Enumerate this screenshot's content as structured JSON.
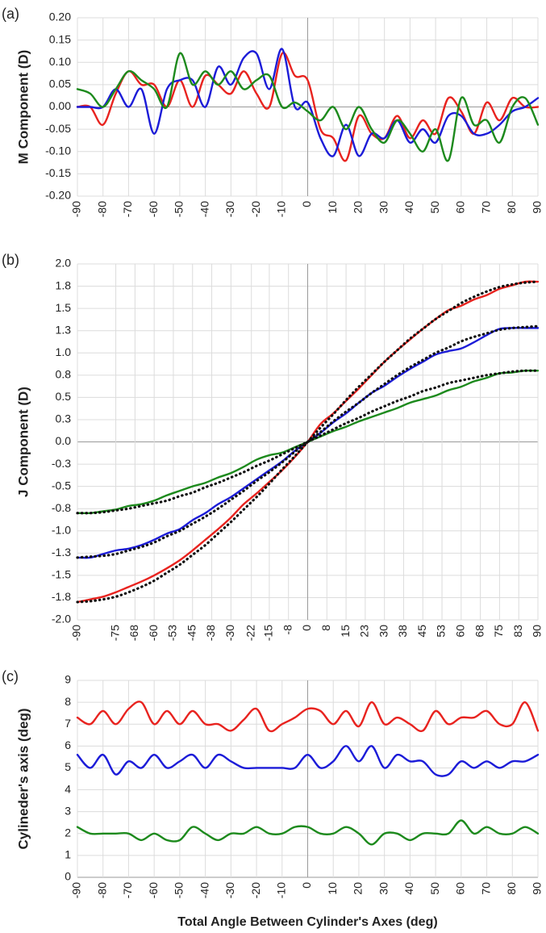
{
  "chart_data": [
    {
      "type": "line",
      "label": "(a)",
      "ylabel": "M Component (D)",
      "x": [
        -90,
        -85,
        -80,
        -75,
        -70,
        -65,
        -60,
        -55,
        -50,
        -45,
        -40,
        -35,
        -30,
        -25,
        -20,
        -15,
        -10,
        -5,
        0,
        5,
        10,
        15,
        20,
        25,
        30,
        35,
        40,
        45,
        50,
        55,
        60,
        65,
        70,
        75,
        80,
        85,
        90
      ],
      "xlim": [
        -90,
        90
      ],
      "xticks": [
        -90,
        -80,
        -70,
        -60,
        -50,
        -40,
        -30,
        -20,
        -10,
        0,
        10,
        20,
        30,
        40,
        50,
        60,
        70,
        80,
        90
      ],
      "ylim": [
        -0.2,
        0.2
      ],
      "yticks": [
        {
          "value": 0.2,
          "label": "0.20"
        },
        0.15,
        {
          "value": 0.1,
          "label": "0.10"
        },
        0.05,
        {
          "value": 0,
          "label": "0.00"
        },
        -0.05,
        {
          "value": -0.1,
          "label": "-0.10"
        },
        -0.15,
        {
          "value": -0.2,
          "label": "-0.20"
        }
      ],
      "grid": true,
      "series": [
        {
          "color": "#e8231f",
          "values": [
            0,
            0,
            -0.04,
            0.03,
            0.08,
            0.05,
            0.05,
            0,
            0.06,
            0,
            0.07,
            0.05,
            0.03,
            0.08,
            0.03,
            0,
            0.12,
            0.07,
            0.06,
            -0.05,
            -0.07,
            -0.12,
            -0.02,
            -0.06,
            -0.07,
            -0.02,
            -0.07,
            -0.03,
            -0.06,
            0.02,
            -0.01,
            -0.06,
            0.01,
            -0.03,
            0.02,
            0,
            0
          ]
        },
        {
          "color": "#1c1cd8",
          "values": [
            0,
            0,
            0,
            0.04,
            0,
            0.04,
            -0.06,
            0.04,
            0.06,
            0.06,
            0,
            0.09,
            0.05,
            0.11,
            0.12,
            0.04,
            0.13,
            0,
            0.01,
            -0.07,
            -0.11,
            -0.04,
            -0.11,
            -0.06,
            -0.07,
            -0.03,
            -0.08,
            -0.05,
            -0.08,
            -0.02,
            -0.02,
            -0.06,
            -0.06,
            -0.04,
            -0.01,
            0,
            0.02
          ]
        },
        {
          "color": "#1d8a1d",
          "values": [
            0.04,
            0.03,
            0,
            0.04,
            0.08,
            0.06,
            0.04,
            0,
            0.12,
            0.05,
            0.08,
            0.05,
            0.08,
            0.04,
            0.06,
            0.07,
            0,
            0.01,
            -0.01,
            -0.03,
            0,
            -0.05,
            0,
            -0.05,
            -0.08,
            -0.03,
            -0.06,
            -0.1,
            -0.05,
            -0.12,
            0.02,
            -0.04,
            -0.03,
            -0.08,
            0,
            0.02,
            -0.04
          ]
        }
      ]
    },
    {
      "type": "line",
      "label": "(b)",
      "ylabel": "J Component (D)",
      "x": [
        -90,
        -85,
        -80,
        -75,
        -70,
        -65,
        -60,
        -55,
        -50,
        -45,
        -40,
        -35,
        -30,
        -25,
        -20,
        -15,
        -10,
        -5,
        0,
        5,
        10,
        15,
        20,
        25,
        30,
        35,
        40,
        45,
        50,
        55,
        60,
        65,
        70,
        75,
        80,
        85,
        90
      ],
      "xlim": [
        -90,
        90
      ],
      "xticks": [
        -90,
        -75,
        {
          "value": -67.5,
          "label": "-68"
        },
        -60,
        {
          "value": -52.5,
          "label": "-53"
        },
        -45,
        {
          "value": -37.5,
          "label": "-38"
        },
        -30,
        -22,
        -15,
        {
          "value": -7.5,
          "label": "-8"
        },
        0,
        {
          "value": 7.5,
          "label": "8"
        },
        15,
        {
          "value": 22.5,
          "label": "23"
        },
        30,
        {
          "value": 37.5,
          "label": "38"
        },
        45,
        {
          "value": 52.5,
          "label": "53"
        },
        60,
        {
          "value": 67.5,
          "label": "68"
        },
        75,
        {
          "value": 82.5,
          "label": "83"
        },
        90
      ],
      "ylim": [
        -2,
        2
      ],
      "yticks": [
        {
          "value": 2,
          "label": "2.0"
        },
        {
          "value": 1.75,
          "label": "1.8"
        },
        1.5,
        {
          "value": 1.25,
          "label": "1.3"
        },
        {
          "value": 1,
          "label": "1.0"
        },
        {
          "value": 0.75,
          "label": "0.8"
        },
        0.5,
        {
          "value": 0.25,
          "label": "0.3"
        },
        {
          "value": 0,
          "label": "0.0"
        },
        {
          "value": -0.25,
          "label": "-0.3"
        },
        -0.5,
        {
          "value": -0.75,
          "label": "-0.8"
        },
        {
          "value": -1,
          "label": "-1.0"
        },
        {
          "value": -1.25,
          "label": "-1.3"
        },
        -1.5,
        {
          "value": -1.75,
          "label": "-1.8"
        },
        {
          "value": -2,
          "label": "-2.0"
        }
      ],
      "grid": true,
      "series": [
        {
          "color": "#e8231f",
          "values": [
            -1.8,
            -1.77,
            -1.74,
            -1.69,
            -1.63,
            -1.57,
            -1.5,
            -1.42,
            -1.33,
            -1.22,
            -1.1,
            -0.98,
            -0.85,
            -0.7,
            -0.58,
            -0.45,
            -0.32,
            -0.17,
            0,
            0.2,
            0.32,
            0.46,
            0.6,
            0.75,
            0.9,
            1.03,
            1.15,
            1.27,
            1.38,
            1.48,
            1.53,
            1.6,
            1.65,
            1.72,
            1.76,
            1.8,
            1.8
          ]
        },
        {
          "color": "#1c1cd8",
          "values": [
            -1.3,
            -1.3,
            -1.26,
            -1.22,
            -1.2,
            -1.16,
            -1.1,
            -1.03,
            -0.98,
            -0.88,
            -0.8,
            -0.7,
            -0.62,
            -0.52,
            -0.42,
            -0.32,
            -0.22,
            -0.1,
            0,
            0.1,
            0.22,
            0.32,
            0.44,
            0.55,
            0.63,
            0.73,
            0.82,
            0.9,
            0.98,
            1.02,
            1.05,
            1.12,
            1.2,
            1.27,
            1.28,
            1.28,
            1.28
          ]
        },
        {
          "color": "#1d8a1d",
          "values": [
            -0.8,
            -0.8,
            -0.78,
            -0.76,
            -0.72,
            -0.7,
            -0.66,
            -0.6,
            -0.55,
            -0.5,
            -0.46,
            -0.4,
            -0.35,
            -0.28,
            -0.2,
            -0.15,
            -0.12,
            -0.06,
            0,
            0.06,
            0.12,
            0.17,
            0.23,
            0.28,
            0.33,
            0.38,
            0.44,
            0.48,
            0.52,
            0.58,
            0.62,
            0.68,
            0.72,
            0.77,
            0.78,
            0.8,
            0.8
          ]
        },
        {
          "color": "#111111",
          "dash": "dotted",
          "values": [
            -1.8,
            -1.79,
            -1.77,
            -1.74,
            -1.69,
            -1.63,
            -1.56,
            -1.47,
            -1.38,
            -1.27,
            -1.16,
            -1.03,
            -0.9,
            -0.76,
            -0.62,
            -0.47,
            -0.31,
            -0.16,
            0,
            0.16,
            0.31,
            0.47,
            0.62,
            0.76,
            0.9,
            1.03,
            1.16,
            1.27,
            1.38,
            1.47,
            1.56,
            1.63,
            1.69,
            1.74,
            1.77,
            1.79,
            1.8
          ]
        },
        {
          "color": "#111111",
          "dash": "dotted",
          "values": [
            -1.3,
            -1.29,
            -1.28,
            -1.26,
            -1.22,
            -1.18,
            -1.13,
            -1.06,
            -1,
            -0.92,
            -0.84,
            -0.75,
            -0.65,
            -0.55,
            -0.44,
            -0.34,
            -0.23,
            -0.11,
            0,
            0.11,
            0.23,
            0.34,
            0.44,
            0.55,
            0.65,
            0.75,
            0.84,
            0.92,
            1,
            1.06,
            1.13,
            1.18,
            1.22,
            1.26,
            1.28,
            1.29,
            1.3
          ]
        },
        {
          "color": "#111111",
          "dash": "dotted",
          "values": [
            -0.8,
            -0.8,
            -0.79,
            -0.77,
            -0.75,
            -0.72,
            -0.69,
            -0.66,
            -0.61,
            -0.57,
            -0.51,
            -0.46,
            -0.4,
            -0.34,
            -0.27,
            -0.21,
            -0.14,
            -0.07,
            0,
            0.07,
            0.14,
            0.21,
            0.27,
            0.34,
            0.4,
            0.46,
            0.51,
            0.57,
            0.61,
            0.66,
            0.69,
            0.72,
            0.75,
            0.77,
            0.79,
            0.8,
            0.8
          ]
        }
      ]
    },
    {
      "type": "line",
      "label": "(c)",
      "ylabel": "Cylineder's axis (deg)",
      "xlabel": "Total Angle Between Cylinder's Axes (deg)",
      "x": [
        -90,
        -85,
        -80,
        -75,
        -70,
        -65,
        -60,
        -55,
        -50,
        -45,
        -40,
        -35,
        -30,
        -25,
        -20,
        -15,
        -10,
        -5,
        0,
        5,
        10,
        15,
        20,
        25,
        30,
        35,
        40,
        45,
        50,
        55,
        60,
        65,
        70,
        75,
        80,
        85,
        90
      ],
      "xlim": [
        -90,
        90
      ],
      "xticks": [
        -90,
        -80,
        -70,
        -60,
        -50,
        -40,
        -30,
        -20,
        -10,
        0,
        10,
        20,
        30,
        40,
        50,
        60,
        70,
        80,
        90
      ],
      "ylim": [
        0,
        9
      ],
      "yticks": [
        0,
        1,
        2,
        3,
        4,
        5,
        6,
        7,
        8,
        9
      ],
      "grid": true,
      "series": [
        {
          "color": "#e8231f",
          "values": [
            7.3,
            7,
            7.6,
            7,
            7.7,
            8,
            7,
            7.6,
            7,
            7.6,
            7,
            7,
            6.7,
            7.2,
            7.7,
            6.7,
            7,
            7.3,
            7.7,
            7.6,
            7,
            7.6,
            6.9,
            8,
            7,
            7.3,
            7,
            6.7,
            7.6,
            7,
            7.3,
            7.3,
            7.6,
            7,
            7,
            8,
            6.7
          ]
        },
        {
          "color": "#1c1cd8",
          "values": [
            5.6,
            5,
            5.6,
            4.7,
            5.3,
            5,
            5.6,
            5,
            5.3,
            5.6,
            5,
            5.6,
            5.3,
            5,
            5,
            5,
            5,
            5,
            5.6,
            5,
            5.3,
            6,
            5.3,
            6,
            5,
            5.6,
            5.3,
            5.3,
            4.7,
            4.7,
            5.3,
            5,
            5.3,
            5,
            5.3,
            5.3,
            5.6
          ]
        },
        {
          "color": "#1d8a1d",
          "values": [
            2.3,
            2,
            2,
            2,
            2,
            1.7,
            2,
            1.7,
            1.7,
            2.3,
            2,
            1.7,
            2,
            2,
            2.3,
            2,
            2,
            2.3,
            2.3,
            2,
            2,
            2.3,
            2,
            1.5,
            2,
            2,
            1.7,
            2,
            2,
            2,
            2.6,
            2,
            2.3,
            2,
            2,
            2.3,
            2
          ]
        }
      ]
    }
  ]
}
